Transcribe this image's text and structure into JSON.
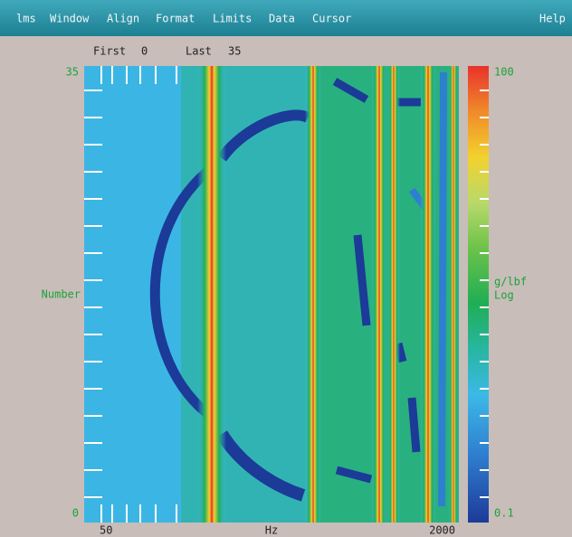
{
  "menu": {
    "items": [
      "lms",
      "Window",
      "Align",
      "Format",
      "Limits",
      "Data",
      "Cursor"
    ],
    "help": "Help"
  },
  "header": {
    "first_label": "First",
    "first_value": 0,
    "last_label": "Last",
    "last_value": 35
  },
  "plot": {
    "y_top": 35,
    "y_label": "Number",
    "y_bottom": 0,
    "x_left": 50,
    "x_label": "Hz",
    "x_right": 2000
  },
  "colorbar": {
    "top": 100,
    "unit": "g/lbf",
    "scale": "Log",
    "bottom": 0.1
  }
}
